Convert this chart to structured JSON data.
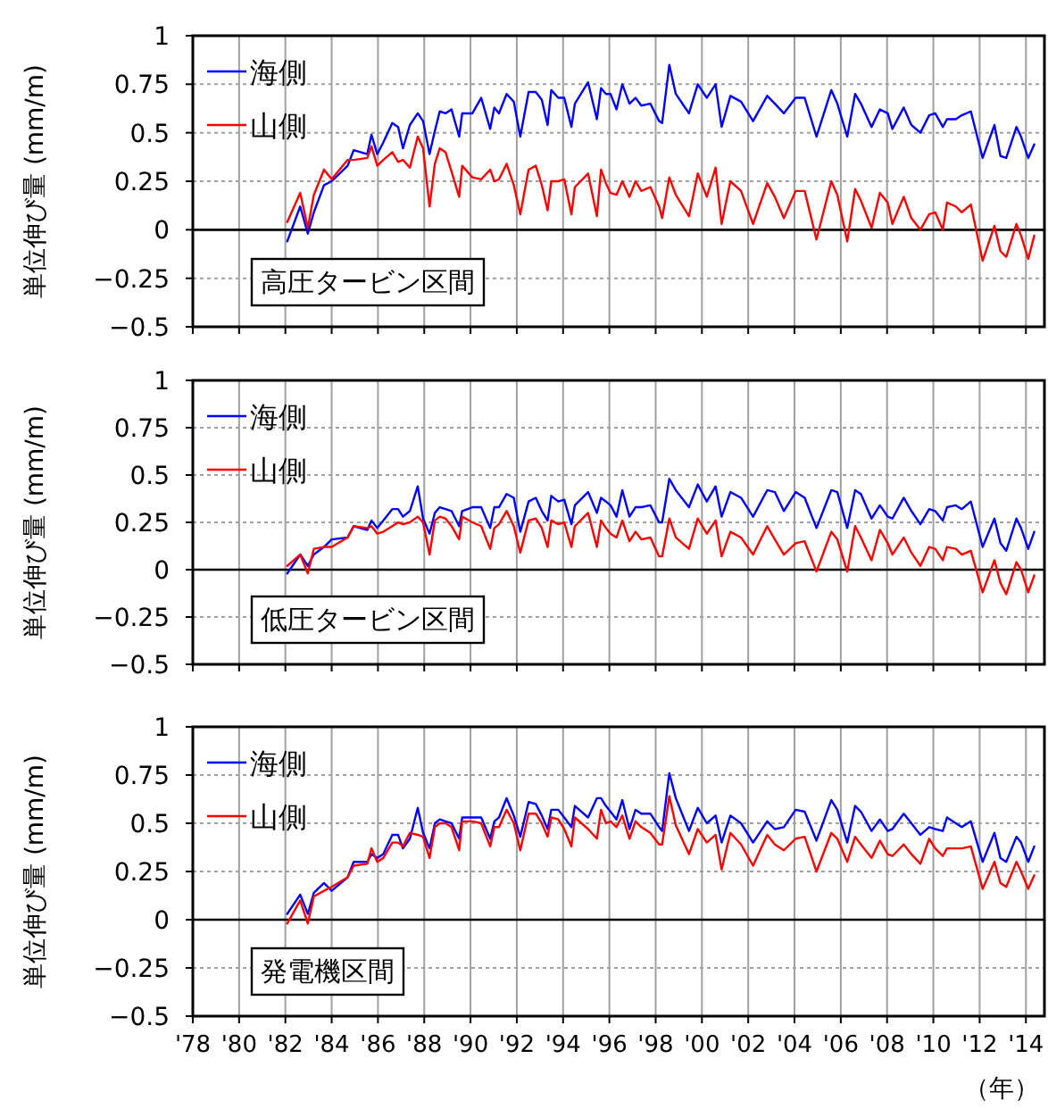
{
  "chart_data": [
    {
      "type": "line",
      "title": "高圧タービン区間",
      "ylabel": "単位伸び量 (mm/m)",
      "tick_labels": "y",
      "grid": true,
      "legend": "top left",
      "xlim": [
        1978,
        2014.8
      ],
      "ylim": [
        -0.5,
        1
      ],
      "yticks": [
        -0.5,
        -0.25,
        0,
        0.25,
        0.5,
        0.75,
        1
      ],
      "xticks": [
        {
          "value": 1978,
          "label": null
        },
        {
          "value": 1980,
          "label": null
        },
        {
          "value": 1982,
          "label": null
        },
        {
          "value": 1984,
          "label": null
        },
        {
          "value": 1986,
          "label": null
        },
        {
          "value": 1988,
          "label": null
        },
        {
          "value": 1990,
          "label": null
        },
        {
          "value": 1992,
          "label": null
        },
        {
          "value": 1994,
          "label": null
        },
        {
          "value": 1996,
          "label": null
        },
        {
          "value": 1998,
          "label": null
        },
        {
          "value": 2000,
          "label": null
        },
        {
          "value": 2002,
          "label": null
        },
        {
          "value": 2004,
          "label": null
        },
        {
          "value": 2006,
          "label": null
        },
        {
          "value": 2008,
          "label": null
        },
        {
          "value": 2010,
          "label": null
        },
        {
          "value": 2012,
          "label": null
        },
        {
          "value": 2014,
          "label": null
        }
      ],
      "ref_lines": [
        {
          "axis": "y",
          "value": 0,
          "color": "#000000"
        }
      ],
      "x": [
        1982.08,
        1982.64,
        1982.97,
        1983.23,
        1983.67,
        1984.0,
        1984.69,
        1984.95,
        1985.54,
        1985.72,
        1985.97,
        1986.23,
        1986.62,
        1986.87,
        1987.08,
        1987.38,
        1987.72,
        1987.95,
        1988.23,
        1988.46,
        1988.67,
        1988.92,
        1989.18,
        1989.51,
        1989.64,
        1990.08,
        1990.46,
        1990.85,
        1991.03,
        1991.23,
        1991.56,
        1991.87,
        1992.15,
        1992.51,
        1992.82,
        1993.08,
        1993.33,
        1993.49,
        1993.79,
        1994.05,
        1994.36,
        1994.51,
        1995.08,
        1995.46,
        1995.64,
        1995.85,
        1996.05,
        1996.31,
        1996.56,
        1996.87,
        1997.13,
        1997.38,
        1997.77,
        1998.15,
        1998.28,
        1998.59,
        1998.87,
        1999.44,
        1999.82,
        2000.21,
        2000.59,
        2000.85,
        2001.23,
        2001.69,
        2002.21,
        2002.82,
        2003.15,
        2003.54,
        2004.05,
        2004.44,
        2004.95,
        2005.59,
        2005.85,
        2006.28,
        2006.62,
        2006.87,
        2007.33,
        2007.69,
        2008.03,
        2008.23,
        2008.72,
        2009.05,
        2009.44,
        2009.82,
        2010.08,
        2010.41,
        2010.59,
        2010.97,
        2011.23,
        2011.62,
        2012.13,
        2012.64,
        2012.9,
        2013.15,
        2013.59,
        2013.79,
        2014.1,
        2014.36
      ],
      "series": [
        {
          "name": "海側",
          "color": "#0000ff",
          "values": [
            -0.06,
            0.12,
            -0.02,
            0.09,
            0.23,
            0.25,
            0.33,
            0.41,
            0.39,
            0.49,
            0.39,
            0.45,
            0.55,
            0.53,
            0.42,
            0.54,
            0.6,
            0.56,
            0.39,
            0.51,
            0.61,
            0.6,
            0.62,
            0.48,
            0.6,
            0.6,
            0.68,
            0.52,
            0.63,
            0.6,
            0.7,
            0.66,
            0.48,
            0.71,
            0.71,
            0.67,
            0.54,
            0.72,
            0.68,
            0.68,
            0.53,
            0.65,
            0.76,
            0.57,
            0.73,
            0.7,
            0.7,
            0.62,
            0.75,
            0.65,
            0.68,
            0.64,
            0.65,
            0.56,
            0.55,
            0.85,
            0.7,
            0.6,
            0.75,
            0.68,
            0.75,
            0.53,
            0.69,
            0.66,
            0.56,
            0.69,
            0.65,
            0.6,
            0.68,
            0.68,
            0.48,
            0.72,
            0.65,
            0.48,
            0.7,
            0.65,
            0.53,
            0.62,
            0.6,
            0.52,
            0.63,
            0.54,
            0.5,
            0.59,
            0.6,
            0.53,
            0.57,
            0.57,
            0.59,
            0.61,
            0.37,
            0.54,
            0.38,
            0.37,
            0.53,
            0.48,
            0.37,
            0.44
          ]
        },
        {
          "name": "山側",
          "color": "#ff0000",
          "values": [
            0.04,
            0.19,
            0.01,
            0.18,
            0.31,
            0.26,
            0.36,
            0.36,
            0.37,
            0.43,
            0.33,
            0.36,
            0.4,
            0.35,
            0.36,
            0.32,
            0.48,
            0.42,
            0.12,
            0.34,
            0.42,
            0.4,
            0.3,
            0.17,
            0.33,
            0.27,
            0.26,
            0.31,
            0.25,
            0.26,
            0.34,
            0.23,
            0.08,
            0.31,
            0.33,
            0.23,
            0.1,
            0.25,
            0.25,
            0.26,
            0.08,
            0.22,
            0.29,
            0.07,
            0.31,
            0.24,
            0.19,
            0.18,
            0.25,
            0.17,
            0.25,
            0.2,
            0.22,
            0.12,
            0.06,
            0.27,
            0.18,
            0.07,
            0.29,
            0.17,
            0.32,
            0.03,
            0.25,
            0.2,
            0.03,
            0.24,
            0.17,
            0.06,
            0.2,
            0.2,
            -0.05,
            0.25,
            0.18,
            -0.06,
            0.21,
            0.15,
            0.01,
            0.19,
            0.14,
            0.03,
            0.17,
            0.06,
            0.0,
            0.08,
            0.09,
            0.0,
            0.14,
            0.12,
            0.09,
            0.13,
            -0.16,
            0.02,
            -0.11,
            -0.14,
            0.03,
            -0.03,
            -0.15,
            -0.03
          ]
        }
      ]
    },
    {
      "type": "line",
      "title": "低圧タービン区間",
      "ylabel": "単位伸び量 (mm/m)",
      "tick_labels": "y",
      "grid": true,
      "legend": "top left",
      "xlim": [
        1978,
        2014.8
      ],
      "ylim": [
        -0.5,
        1
      ],
      "yticks": [
        -0.5,
        -0.25,
        0,
        0.25,
        0.5,
        0.75,
        1
      ],
      "xticks": [
        {
          "value": 1978,
          "label": null
        },
        {
          "value": 1980,
          "label": null
        },
        {
          "value": 1982,
          "label": null
        },
        {
          "value": 1984,
          "label": null
        },
        {
          "value": 1986,
          "label": null
        },
        {
          "value": 1988,
          "label": null
        },
        {
          "value": 1990,
          "label": null
        },
        {
          "value": 1992,
          "label": null
        },
        {
          "value": 1994,
          "label": null
        },
        {
          "value": 1996,
          "label": null
        },
        {
          "value": 1998,
          "label": null
        },
        {
          "value": 2000,
          "label": null
        },
        {
          "value": 2002,
          "label": null
        },
        {
          "value": 2004,
          "label": null
        },
        {
          "value": 2006,
          "label": null
        },
        {
          "value": 2008,
          "label": null
        },
        {
          "value": 2010,
          "label": null
        },
        {
          "value": 2012,
          "label": null
        },
        {
          "value": 2014,
          "label": null
        }
      ],
      "ref_lines": [
        {
          "axis": "y",
          "value": 0,
          "color": "#000000"
        }
      ],
      "x": [
        1982.08,
        1982.64,
        1982.97,
        1983.23,
        1983.67,
        1984.0,
        1984.69,
        1984.95,
        1985.54,
        1985.72,
        1985.97,
        1986.23,
        1986.62,
        1986.87,
        1987.08,
        1987.38,
        1987.72,
        1987.95,
        1988.23,
        1988.46,
        1988.67,
        1988.92,
        1989.18,
        1989.51,
        1989.64,
        1990.08,
        1990.46,
        1990.85,
        1991.03,
        1991.23,
        1991.56,
        1991.87,
        1992.15,
        1992.51,
        1992.82,
        1993.08,
        1993.33,
        1993.49,
        1993.79,
        1994.05,
        1994.36,
        1994.51,
        1995.08,
        1995.46,
        1995.64,
        1995.85,
        1996.05,
        1996.31,
        1996.56,
        1996.87,
        1997.13,
        1997.38,
        1997.77,
        1998.15,
        1998.28,
        1998.59,
        1998.87,
        1999.44,
        1999.82,
        2000.21,
        2000.59,
        2000.85,
        2001.23,
        2001.69,
        2002.21,
        2002.82,
        2003.15,
        2003.54,
        2004.05,
        2004.44,
        2004.95,
        2005.59,
        2005.85,
        2006.28,
        2006.62,
        2006.87,
        2007.33,
        2007.69,
        2008.03,
        2008.23,
        2008.72,
        2009.05,
        2009.44,
        2009.82,
        2010.08,
        2010.41,
        2010.59,
        2010.97,
        2011.23,
        2011.62,
        2012.13,
        2012.64,
        2012.9,
        2013.15,
        2013.59,
        2013.79,
        2014.1,
        2014.36
      ],
      "series": [
        {
          "name": "海側",
          "color": "#0000ff",
          "values": [
            -0.02,
            0.08,
            0.02,
            0.08,
            0.12,
            0.16,
            0.17,
            0.23,
            0.21,
            0.26,
            0.22,
            0.26,
            0.32,
            0.32,
            0.28,
            0.31,
            0.44,
            0.27,
            0.19,
            0.3,
            0.33,
            0.32,
            0.31,
            0.23,
            0.31,
            0.33,
            0.33,
            0.22,
            0.33,
            0.33,
            0.4,
            0.38,
            0.2,
            0.36,
            0.38,
            0.31,
            0.26,
            0.39,
            0.36,
            0.37,
            0.24,
            0.34,
            0.41,
            0.3,
            0.38,
            0.36,
            0.34,
            0.28,
            0.42,
            0.28,
            0.33,
            0.33,
            0.34,
            0.25,
            0.25,
            0.48,
            0.42,
            0.33,
            0.45,
            0.36,
            0.44,
            0.28,
            0.41,
            0.38,
            0.28,
            0.42,
            0.41,
            0.31,
            0.41,
            0.38,
            0.22,
            0.42,
            0.41,
            0.22,
            0.42,
            0.4,
            0.27,
            0.34,
            0.28,
            0.27,
            0.38,
            0.31,
            0.24,
            0.32,
            0.31,
            0.26,
            0.33,
            0.34,
            0.32,
            0.36,
            0.12,
            0.27,
            0.14,
            0.1,
            0.27,
            0.22,
            0.11,
            0.2
          ]
        },
        {
          "name": "山側",
          "color": "#ff0000",
          "values": [
            0.02,
            0.08,
            -0.02,
            0.11,
            0.12,
            0.12,
            0.17,
            0.23,
            0.22,
            0.23,
            0.19,
            0.2,
            0.23,
            0.25,
            0.24,
            0.25,
            0.28,
            0.25,
            0.08,
            0.26,
            0.28,
            0.27,
            0.23,
            0.16,
            0.28,
            0.25,
            0.23,
            0.11,
            0.22,
            0.24,
            0.31,
            0.23,
            0.09,
            0.26,
            0.27,
            0.22,
            0.12,
            0.26,
            0.24,
            0.25,
            0.12,
            0.23,
            0.3,
            0.12,
            0.26,
            0.22,
            0.19,
            0.17,
            0.26,
            0.15,
            0.2,
            0.16,
            0.17,
            0.07,
            0.07,
            0.27,
            0.17,
            0.11,
            0.27,
            0.19,
            0.26,
            0.07,
            0.2,
            0.17,
            0.08,
            0.23,
            0.16,
            0.08,
            0.14,
            0.15,
            -0.01,
            0.2,
            0.16,
            -0.01,
            0.23,
            0.17,
            0.05,
            0.21,
            0.14,
            0.08,
            0.17,
            0.09,
            0.02,
            0.12,
            0.11,
            0.05,
            0.12,
            0.11,
            0.08,
            0.1,
            -0.12,
            0.05,
            -0.07,
            -0.13,
            0.04,
            0.0,
            -0.12,
            -0.03
          ]
        }
      ]
    },
    {
      "type": "line",
      "title": "発電機区間",
      "ylabel": "単位伸び量 (mm/m)",
      "xlabel": "（年）",
      "grid": true,
      "legend": "top left",
      "xlim": [
        1978,
        2014.8
      ],
      "ylim": [
        -0.5,
        1
      ],
      "yticks": [
        -0.5,
        -0.25,
        0,
        0.25,
        0.5,
        0.75,
        1
      ],
      "xticks": [
        {
          "value": 1978,
          "label": "'78"
        },
        {
          "value": 1980,
          "label": "'80"
        },
        {
          "value": 1982,
          "label": "'82"
        },
        {
          "value": 1984,
          "label": "'84"
        },
        {
          "value": 1986,
          "label": "'86"
        },
        {
          "value": 1988,
          "label": "'88"
        },
        {
          "value": 1990,
          "label": "'90"
        },
        {
          "value": 1992,
          "label": "'92"
        },
        {
          "value": 1994,
          "label": "'94"
        },
        {
          "value": 1996,
          "label": "'96"
        },
        {
          "value": 1998,
          "label": "'98"
        },
        {
          "value": 2000,
          "label": "'00"
        },
        {
          "value": 2002,
          "label": "'02"
        },
        {
          "value": 2004,
          "label": "'04"
        },
        {
          "value": 2006,
          "label": "'06"
        },
        {
          "value": 2008,
          "label": "'08"
        },
        {
          "value": 2010,
          "label": "'10"
        },
        {
          "value": 2012,
          "label": "'12"
        },
        {
          "value": 2014,
          "label": "'14"
        }
      ],
      "ref_lines": [
        {
          "axis": "y",
          "value": 0,
          "color": "#000000"
        }
      ],
      "x": [
        1982.08,
        1982.64,
        1982.97,
        1983.23,
        1983.67,
        1984.0,
        1984.69,
        1984.95,
        1985.54,
        1985.72,
        1985.97,
        1986.23,
        1986.62,
        1986.87,
        1987.08,
        1987.38,
        1987.72,
        1987.95,
        1988.23,
        1988.46,
        1988.67,
        1988.92,
        1989.18,
        1989.51,
        1989.64,
        1990.08,
        1990.46,
        1990.85,
        1991.03,
        1991.23,
        1991.56,
        1991.87,
        1992.15,
        1992.51,
        1992.82,
        1993.08,
        1993.33,
        1993.49,
        1993.79,
        1994.05,
        1994.36,
        1994.51,
        1995.08,
        1995.46,
        1995.64,
        1995.85,
        1996.05,
        1996.31,
        1996.56,
        1996.87,
        1997.13,
        1997.38,
        1997.77,
        1998.15,
        1998.28,
        1998.59,
        1998.87,
        1999.44,
        1999.82,
        2000.21,
        2000.59,
        2000.85,
        2001.23,
        2001.69,
        2002.21,
        2002.82,
        2003.15,
        2003.54,
        2004.05,
        2004.44,
        2004.95,
        2005.59,
        2005.85,
        2006.28,
        2006.62,
        2006.87,
        2007.33,
        2007.69,
        2008.03,
        2008.23,
        2008.72,
        2009.05,
        2009.44,
        2009.82,
        2010.08,
        2010.41,
        2010.59,
        2010.97,
        2011.23,
        2011.62,
        2012.13,
        2012.64,
        2012.9,
        2013.15,
        2013.59,
        2013.79,
        2014.1,
        2014.36
      ],
      "series": [
        {
          "name": "海側",
          "color": "#0000ff",
          "values": [
            0.03,
            0.13,
            0.03,
            0.14,
            0.19,
            0.15,
            0.22,
            0.3,
            0.3,
            0.34,
            0.32,
            0.34,
            0.44,
            0.44,
            0.37,
            0.42,
            0.58,
            0.45,
            0.37,
            0.5,
            0.52,
            0.51,
            0.5,
            0.42,
            0.53,
            0.53,
            0.53,
            0.42,
            0.51,
            0.53,
            0.63,
            0.54,
            0.43,
            0.61,
            0.6,
            0.54,
            0.47,
            0.57,
            0.57,
            0.53,
            0.48,
            0.59,
            0.53,
            0.63,
            0.63,
            0.59,
            0.56,
            0.52,
            0.62,
            0.47,
            0.57,
            0.55,
            0.55,
            0.48,
            0.46,
            0.76,
            0.63,
            0.46,
            0.58,
            0.5,
            0.54,
            0.4,
            0.54,
            0.5,
            0.4,
            0.51,
            0.47,
            0.48,
            0.57,
            0.56,
            0.41,
            0.62,
            0.57,
            0.4,
            0.59,
            0.56,
            0.46,
            0.52,
            0.46,
            0.47,
            0.55,
            0.5,
            0.44,
            0.48,
            0.47,
            0.46,
            0.53,
            0.5,
            0.48,
            0.51,
            0.3,
            0.45,
            0.32,
            0.3,
            0.43,
            0.4,
            0.3,
            0.38
          ]
        },
        {
          "name": "山側",
          "color": "#ff0000",
          "values": [
            -0.02,
            0.1,
            -0.02,
            0.12,
            0.15,
            0.17,
            0.22,
            0.28,
            0.29,
            0.37,
            0.3,
            0.32,
            0.4,
            0.4,
            0.38,
            0.45,
            0.44,
            0.43,
            0.32,
            0.48,
            0.5,
            0.5,
            0.48,
            0.36,
            0.51,
            0.51,
            0.5,
            0.38,
            0.48,
            0.48,
            0.57,
            0.5,
            0.36,
            0.55,
            0.55,
            0.5,
            0.43,
            0.53,
            0.52,
            0.47,
            0.38,
            0.53,
            0.47,
            0.42,
            0.57,
            0.5,
            0.51,
            0.48,
            0.54,
            0.42,
            0.51,
            0.48,
            0.45,
            0.39,
            0.39,
            0.64,
            0.49,
            0.34,
            0.47,
            0.4,
            0.44,
            0.26,
            0.45,
            0.39,
            0.28,
            0.44,
            0.39,
            0.36,
            0.42,
            0.43,
            0.25,
            0.45,
            0.42,
            0.3,
            0.43,
            0.39,
            0.32,
            0.41,
            0.34,
            0.33,
            0.39,
            0.34,
            0.29,
            0.42,
            0.37,
            0.33,
            0.37,
            0.37,
            0.37,
            0.38,
            0.16,
            0.3,
            0.19,
            0.17,
            0.3,
            0.25,
            0.16,
            0.23
          ]
        }
      ]
    }
  ]
}
